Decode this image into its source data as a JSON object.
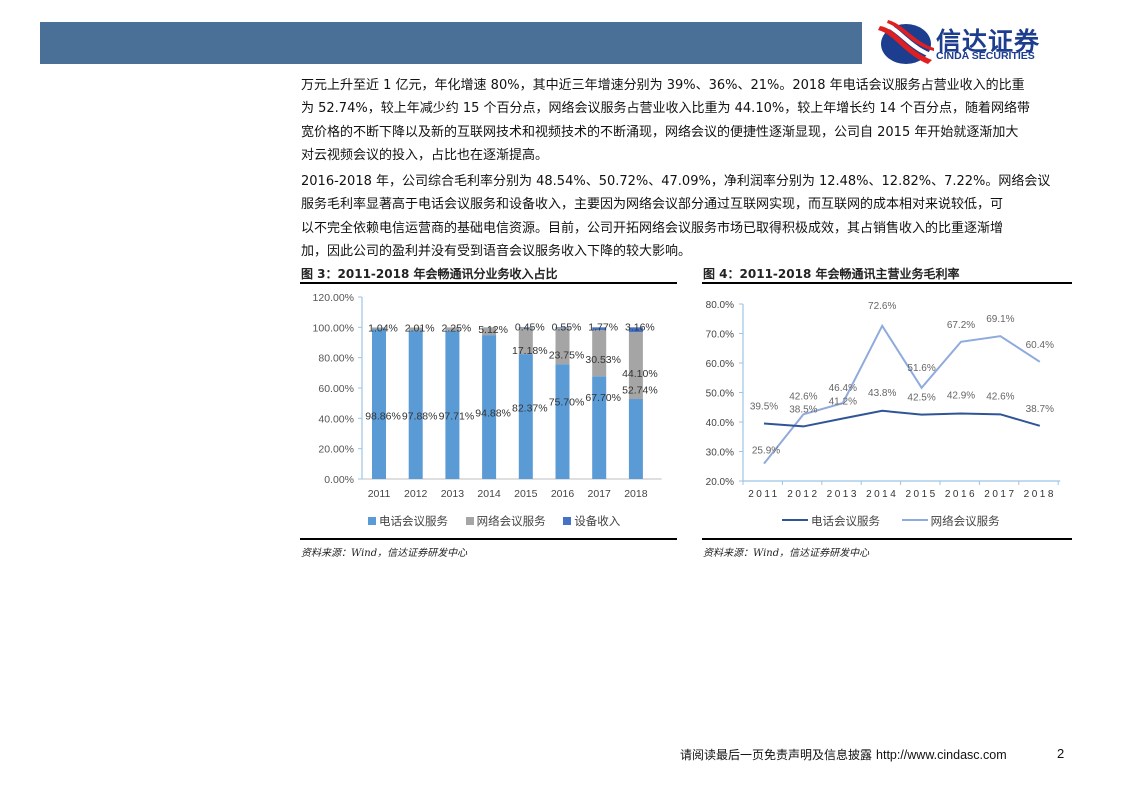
{
  "header": {
    "brand_cn": "信达证券",
    "brand_en": "CINDA SECURITIES",
    "bar_color": "#4a7097"
  },
  "body": {
    "para1_lines": [
      "万元上升至近 1 亿元，年化增速 80%，其中近三年增速分别为 39%、36%、21%。2018 年电话会议服务占营业收入的比重",
      "为 52.74%，较上年减少约 15 个百分点，网络会议服务占营业收入比重为 44.10%，较上年增长约 14 个百分点，随着网络带",
      "宽价格的不断下降以及新的互联网技术和视频技术的不断涌现，网络会议的便捷性逐渐显现，公司自 2015 年开始就逐渐加大",
      "对云视频会议的投入，占比也在逐渐提高。"
    ],
    "para2_lines": [
      "2016-2018 年，公司综合毛利率分别为 48.54%、50.72%、47.09%，净利润率分别为 12.48%、12.82%、7.22%。网络会议",
      "服务毛利率显著高于电话会议服务和设备收入，主要因为网络会议部分通过互联网实现，而互联网的成本相对来说较低，可",
      "以不完全依赖电信运营商的基础电信资源。目前，公司开拓网络会议服务市场已取得积极成效，其占销售收入的比重逐渐增",
      "加，因此公司的盈利并没有受到语音会议服务收入下降的较大影响。"
    ]
  },
  "figure3": {
    "title": "图 3：2011-2018 年会畅通讯分业务收入占比",
    "source": "资料来源：Wind，信达证券研发中心"
  },
  "figure4": {
    "title": "图 4：2011-2018 年会畅通讯主营业务毛利率",
    "source": "资料来源：Wind，信达证券研发中心"
  },
  "chart_data": [
    {
      "type": "bar",
      "stacked": true,
      "title": "图 3：2011-2018 年会畅通讯分业务收入占比",
      "categories": [
        "2011",
        "2012",
        "2013",
        "2014",
        "2015",
        "2016",
        "2017",
        "2018"
      ],
      "series": [
        {
          "name": "电话会议服务",
          "color": "#5b9bd5",
          "values": [
            98.86,
            97.88,
            97.71,
            94.88,
            82.37,
            75.7,
            67.7,
            52.74
          ],
          "labels": [
            "98.86%",
            "97.88%",
            "97.71%",
            "94.88%",
            "82.37%",
            "75.70%",
            "67.70%",
            "52.74%"
          ]
        },
        {
          "name": "网络会议服务",
          "color": "#a5a5a5",
          "values": [
            1.04,
            2.01,
            2.25,
            5.12,
            17.18,
            23.75,
            30.53,
            44.1
          ],
          "labels": [
            "1.04%",
            "2.01%",
            "2.25%",
            "5.12%",
            "17.18%",
            "23.75%",
            "30.53%",
            "44.10%"
          ]
        },
        {
          "name": "设备收入",
          "color": "#4472c4",
          "values": [
            0,
            0,
            0,
            0,
            0.45,
            0.55,
            1.77,
            3.16
          ],
          "labels": [
            "",
            "",
            "",
            "",
            "0.45%",
            "0.55%",
            "1.77%",
            "3.16%"
          ]
        }
      ],
      "yticks": [
        "0.00%",
        "20.00%",
        "40.00%",
        "60.00%",
        "80.00%",
        "100.00%",
        "120.00%"
      ],
      "ylim": [
        0,
        120
      ],
      "xlabel": "",
      "ylabel": "",
      "legend_position": "bottom"
    },
    {
      "type": "line",
      "title": "图 4：2011-2018 年会畅通讯主营业务毛利率",
      "categories": [
        "2011",
        "2012",
        "2013",
        "2014",
        "2015",
        "2016",
        "2017",
        "2018"
      ],
      "series": [
        {
          "name": "电话会议服务",
          "color": "#2f5597",
          "values": [
            39.5,
            38.5,
            41.2,
            43.8,
            42.5,
            42.9,
            42.6,
            38.7
          ],
          "labels": [
            "39.5%",
            "38.5%",
            "41.2%",
            "43.8%",
            "42.5%",
            "42.9%",
            "42.6%",
            "38.7%"
          ]
        },
        {
          "name": "网络会议服务",
          "color": "#8faadc",
          "values": [
            25.9,
            42.6,
            46.4,
            72.6,
            51.6,
            67.2,
            69.1,
            60.4
          ],
          "labels": [
            "25.9%",
            "42.6%",
            "46.4%",
            "72.6%",
            "51.6%",
            "67.2%",
            "69.1%",
            "60.4%"
          ]
        }
      ],
      "yticks": [
        "20.0%",
        "30.0%",
        "40.0%",
        "50.0%",
        "60.0%",
        "70.0%",
        "80.0%"
      ],
      "ylim": [
        20,
        80
      ],
      "xlabel": "",
      "ylabel": "",
      "legend_position": "bottom"
    }
  ],
  "footer": {
    "disclaimer": "请阅读最后一页免责声明及信息披露",
    "url": "http://www.cindasc.com",
    "page_number": "2"
  }
}
